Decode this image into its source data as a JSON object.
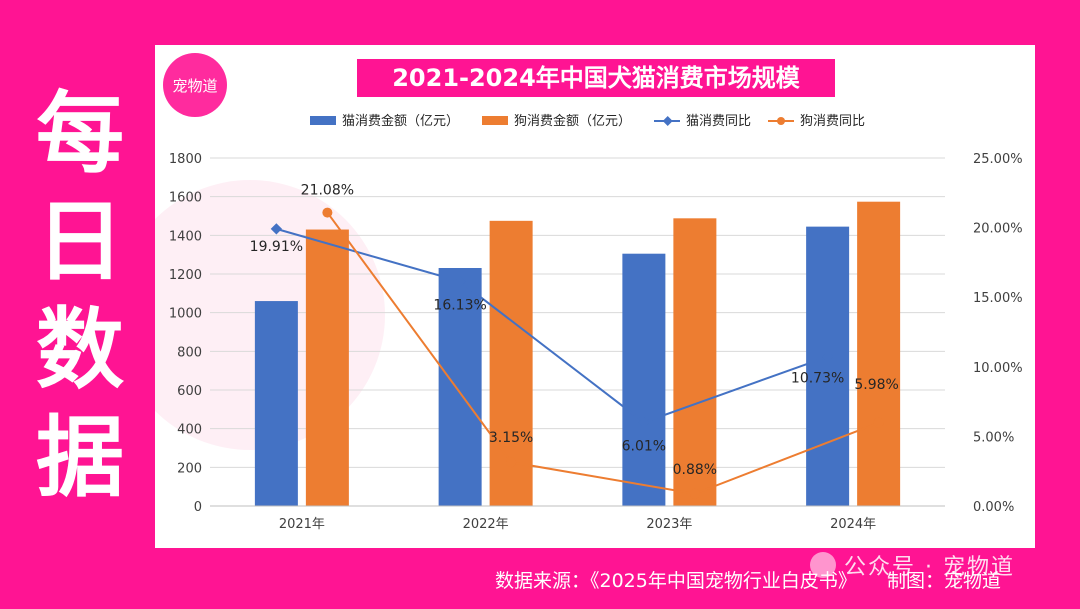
{
  "side_title": [
    "每",
    "日",
    "数",
    "据"
  ],
  "logo_text": "宠物道",
  "footer": {
    "source": "数据来源：《2025年中国宠物行业白皮书》",
    "maker": "制图：宠物道"
  },
  "watermark": {
    "text": "公众号 · 宠物道"
  },
  "colors": {
    "page_bg": "#ff1493",
    "cat_bar": "#4472c4",
    "dog_bar": "#ed7d31",
    "cat_line": "#4472c4",
    "dog_line": "#ed7d31"
  },
  "chart_data": {
    "type": "bar",
    "title": "2021-2024年中国犬猫消费市场规模",
    "categories": [
      "2021年",
      "2022年",
      "2023年",
      "2024年"
    ],
    "series": [
      {
        "name": "猫消费金额（亿元）",
        "type": "bar",
        "axis": "left",
        "values": [
          1060,
          1231,
          1305,
          1445
        ]
      },
      {
        "name": "狗消费金额（亿元）",
        "type": "bar",
        "axis": "left",
        "values": [
          1430,
          1475,
          1488,
          1574
        ]
      },
      {
        "name": "猫消费同比",
        "type": "line",
        "axis": "right",
        "values": [
          19.91,
          16.13,
          6.01,
          10.73
        ],
        "labels": [
          "19.91%",
          "16.13%",
          "6.01%",
          "10.73%"
        ]
      },
      {
        "name": "狗消费同比",
        "type": "line",
        "axis": "right",
        "values": [
          21.08,
          3.15,
          0.88,
          5.98
        ],
        "labels": [
          "21.08%",
          "3.15%",
          "0.88%",
          "5.98%"
        ]
      }
    ],
    "ylim": [
      0,
      1800
    ],
    "yticks": [
      "0",
      "200",
      "400",
      "600",
      "800",
      "1000",
      "1200",
      "1400",
      "1600",
      "1800"
    ],
    "y2lim": [
      0,
      25
    ],
    "y2ticks": [
      "0.00%",
      "5.00%",
      "10.00%",
      "15.00%",
      "20.00%",
      "25.00%"
    ],
    "grid": true,
    "legend_position": "top"
  }
}
